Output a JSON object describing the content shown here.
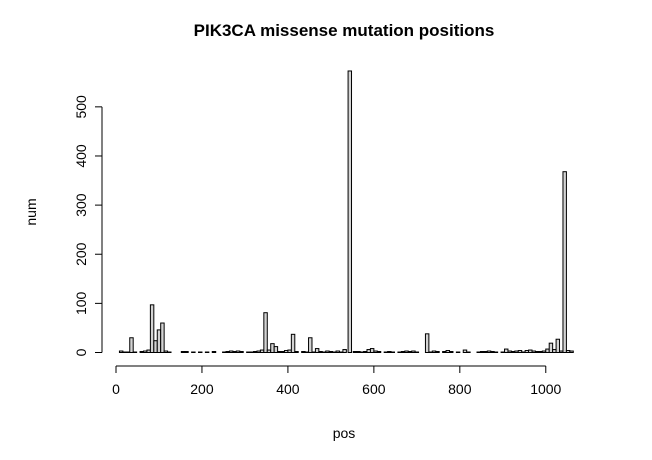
{
  "chart_data": {
    "type": "bar",
    "title": "PIK3CA missense mutation positions",
    "xlabel": "pos",
    "ylabel": "num",
    "xlim": [
      0,
      1068
    ],
    "ylim": [
      0,
      575
    ],
    "xticks": [
      0,
      200,
      400,
      600,
      800,
      1000
    ],
    "yticks": [
      0,
      100,
      200,
      300,
      400,
      500
    ],
    "bin_width": 8,
    "bars": [
      {
        "x": 12,
        "y": 3
      },
      {
        "x": 20,
        "y": 1
      },
      {
        "x": 28,
        "y": 1
      },
      {
        "x": 36,
        "y": 30
      },
      {
        "x": 44,
        "y": 1
      },
      {
        "x": 60,
        "y": 2
      },
      {
        "x": 68,
        "y": 3
      },
      {
        "x": 76,
        "y": 5
      },
      {
        "x": 84,
        "y": 97
      },
      {
        "x": 92,
        "y": 24
      },
      {
        "x": 100,
        "y": 46
      },
      {
        "x": 108,
        "y": 60
      },
      {
        "x": 116,
        "y": 3
      },
      {
        "x": 124,
        "y": 1
      },
      {
        "x": 156,
        "y": 2
      },
      {
        "x": 164,
        "y": 2
      },
      {
        "x": 180,
        "y": 1
      },
      {
        "x": 196,
        "y": 1
      },
      {
        "x": 212,
        "y": 1
      },
      {
        "x": 228,
        "y": 2
      },
      {
        "x": 252,
        "y": 1
      },
      {
        "x": 260,
        "y": 2
      },
      {
        "x": 268,
        "y": 3
      },
      {
        "x": 276,
        "y": 2
      },
      {
        "x": 284,
        "y": 3
      },
      {
        "x": 292,
        "y": 2
      },
      {
        "x": 308,
        "y": 1
      },
      {
        "x": 316,
        "y": 1
      },
      {
        "x": 324,
        "y": 2
      },
      {
        "x": 332,
        "y": 3
      },
      {
        "x": 340,
        "y": 5
      },
      {
        "x": 348,
        "y": 81
      },
      {
        "x": 356,
        "y": 5
      },
      {
        "x": 364,
        "y": 18
      },
      {
        "x": 372,
        "y": 12
      },
      {
        "x": 380,
        "y": 2
      },
      {
        "x": 388,
        "y": 2
      },
      {
        "x": 396,
        "y": 4
      },
      {
        "x": 404,
        "y": 5
      },
      {
        "x": 412,
        "y": 37
      },
      {
        "x": 420,
        "y": 2
      },
      {
        "x": 436,
        "y": 2
      },
      {
        "x": 444,
        "y": 1
      },
      {
        "x": 452,
        "y": 30
      },
      {
        "x": 460,
        "y": 1
      },
      {
        "x": 468,
        "y": 8
      },
      {
        "x": 476,
        "y": 2
      },
      {
        "x": 484,
        "y": 1
      },
      {
        "x": 492,
        "y": 3
      },
      {
        "x": 500,
        "y": 2
      },
      {
        "x": 508,
        "y": 1
      },
      {
        "x": 516,
        "y": 3
      },
      {
        "x": 524,
        "y": 1
      },
      {
        "x": 532,
        "y": 6
      },
      {
        "x": 544,
        "y": 573
      },
      {
        "x": 556,
        "y": 2
      },
      {
        "x": 564,
        "y": 2
      },
      {
        "x": 572,
        "y": 1
      },
      {
        "x": 580,
        "y": 2
      },
      {
        "x": 588,
        "y": 6
      },
      {
        "x": 596,
        "y": 8
      },
      {
        "x": 604,
        "y": 3
      },
      {
        "x": 612,
        "y": 2
      },
      {
        "x": 628,
        "y": 1
      },
      {
        "x": 636,
        "y": 2
      },
      {
        "x": 644,
        "y": 1
      },
      {
        "x": 660,
        "y": 1
      },
      {
        "x": 668,
        "y": 2
      },
      {
        "x": 676,
        "y": 3
      },
      {
        "x": 684,
        "y": 2
      },
      {
        "x": 692,
        "y": 3
      },
      {
        "x": 700,
        "y": 1
      },
      {
        "x": 724,
        "y": 38
      },
      {
        "x": 732,
        "y": 1
      },
      {
        "x": 740,
        "y": 3
      },
      {
        "x": 748,
        "y": 2
      },
      {
        "x": 764,
        "y": 2
      },
      {
        "x": 772,
        "y": 4
      },
      {
        "x": 780,
        "y": 2
      },
      {
        "x": 796,
        "y": 1
      },
      {
        "x": 812,
        "y": 5
      },
      {
        "x": 820,
        "y": 1
      },
      {
        "x": 844,
        "y": 1
      },
      {
        "x": 852,
        "y": 2
      },
      {
        "x": 860,
        "y": 2
      },
      {
        "x": 868,
        "y": 3
      },
      {
        "x": 876,
        "y": 2
      },
      {
        "x": 884,
        "y": 1
      },
      {
        "x": 900,
        "y": 1
      },
      {
        "x": 908,
        "y": 7
      },
      {
        "x": 916,
        "y": 3
      },
      {
        "x": 924,
        "y": 2
      },
      {
        "x": 932,
        "y": 3
      },
      {
        "x": 940,
        "y": 4
      },
      {
        "x": 948,
        "y": 1
      },
      {
        "x": 956,
        "y": 4
      },
      {
        "x": 964,
        "y": 5
      },
      {
        "x": 972,
        "y": 3
      },
      {
        "x": 980,
        "y": 2
      },
      {
        "x": 988,
        "y": 2
      },
      {
        "x": 996,
        "y": 3
      },
      {
        "x": 1004,
        "y": 7
      },
      {
        "x": 1012,
        "y": 19
      },
      {
        "x": 1020,
        "y": 6
      },
      {
        "x": 1028,
        "y": 27
      },
      {
        "x": 1036,
        "y": 3
      },
      {
        "x": 1044,
        "y": 368
      },
      {
        "x": 1052,
        "y": 4
      },
      {
        "x": 1060,
        "y": 3
      }
    ],
    "grid": false,
    "bar_fill": "#d3d3d3",
    "bar_stroke": "#000000"
  }
}
